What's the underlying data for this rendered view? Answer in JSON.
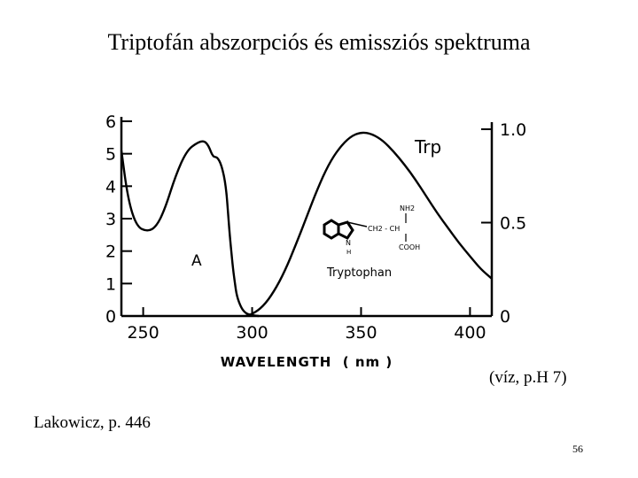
{
  "slide": {
    "title": "Triptofán abszorpciós és emissziós spektruma",
    "condition_note": "(víz, p.H 7)",
    "source": "Lakowicz, p. 446",
    "page_number": "56"
  },
  "chart_data": {
    "type": "line",
    "xlabel": "WAVELENGTH  ( nm )",
    "xlim": [
      240,
      410
    ],
    "x_ticks": [
      "250",
      "300",
      "350",
      "400"
    ],
    "y_left_ticks": [
      "0",
      "1",
      "2",
      "3",
      "4",
      "5",
      "6"
    ],
    "ylim_left": [
      0,
      6
    ],
    "y_right_ticks": [
      "0",
      "0.5",
      "1.0"
    ],
    "ylim_right": [
      0,
      1
    ],
    "labels": {
      "absorption": "A",
      "emission": "Trp",
      "molecule": "Tryptophan",
      "nh2": "NH2",
      "ch2ch": "CH2 - CH",
      "cooh": "COOH",
      "n": "N",
      "h": "H"
    },
    "series": [
      {
        "name": "A",
        "axis": "left",
        "x": [
          240,
          243,
          247,
          252,
          256,
          260,
          265,
          270,
          275,
          278,
          280,
          282,
          284,
          286,
          288,
          289,
          290,
          291,
          292,
          293,
          295,
          297,
          300,
          303
        ],
        "y": [
          5.1,
          3.6,
          2.75,
          2.6,
          2.75,
          3.3,
          4.35,
          5.1,
          5.35,
          5.4,
          5.25,
          4.9,
          4.9,
          4.65,
          4.0,
          3.1,
          2.3,
          1.6,
          1.05,
          0.6,
          0.25,
          0.08,
          0.02,
          0.0
        ]
      },
      {
        "name": "Trp",
        "axis": "right",
        "x": [
          297,
          300,
          305,
          310,
          315,
          320,
          325,
          330,
          335,
          340,
          345,
          350,
          355,
          360,
          365,
          370,
          375,
          380,
          385,
          390,
          395,
          400,
          405,
          410
        ],
        "y": [
          0.0,
          0.01,
          0.05,
          0.13,
          0.24,
          0.38,
          0.53,
          0.68,
          0.81,
          0.9,
          0.96,
          0.985,
          0.975,
          0.94,
          0.88,
          0.81,
          0.73,
          0.64,
          0.55,
          0.47,
          0.39,
          0.32,
          0.25,
          0.2
        ]
      }
    ]
  }
}
